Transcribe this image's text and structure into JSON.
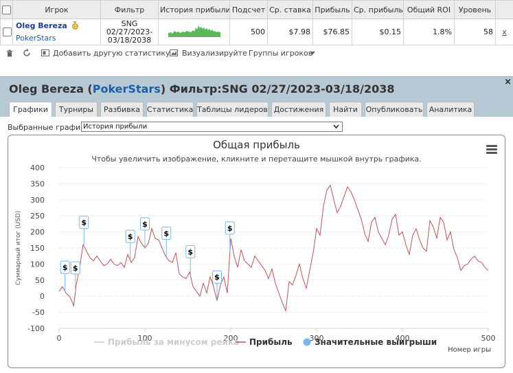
{
  "table": {
    "headers": [
      "Игрок",
      "Фильтр",
      "История прибыли",
      "Подсчет",
      "Ср. ставка",
      "Прибыль",
      "Ср. прибыль",
      "Общий ROI",
      "Уровень"
    ],
    "row": {
      "player": "Oleg Bereza",
      "site": "PokerStars",
      "filter_line1": "SNG",
      "filter_line2": "02/27/2023-",
      "filter_line3": "03/18/2038",
      "count": "500",
      "avg_stake": "$7.98",
      "profit": "$76.85",
      "avg_profit": "$0.15",
      "roi": "1.8%",
      "level": "58",
      "remove": "x"
    }
  },
  "toolbar": {
    "add_stat": "Добавить другую статистику",
    "visualize": "Визуализируйте",
    "groups": "Группы игроков"
  },
  "panel": {
    "player": "Oleg Bereza",
    "site": "PokerStars",
    "filter_label": "Фильтр:",
    "filter_value": "SNG 02/27/2023-03/18/2038",
    "close": "×"
  },
  "tabs": [
    "Графики",
    "Турниры",
    "Разбивка",
    "Статистика",
    "Таблицы лидеров",
    "Достижения",
    "Найти",
    "Опубликовать",
    "Аналитика"
  ],
  "graph_select": {
    "label": "Выбранные графики:",
    "value": "История прибыли"
  },
  "chart_data": {
    "type": "line",
    "title": "Общая прибыль",
    "subtitle": "Чтобы увеличить изображение, кликните и перетащите мышкой внутрь графика.",
    "xlabel": "Номер игры",
    "ylabel": "Суммарный итог (USD)",
    "xlim": [
      0,
      500
    ],
    "ylim": [
      -100,
      400
    ],
    "x_ticks": [
      0,
      100,
      200,
      300,
      400,
      500
    ],
    "y_ticks": [
      -100,
      -50,
      0,
      50,
      100,
      150,
      200,
      250,
      300,
      350,
      400
    ],
    "legend": [
      "Прибыль за минусом рейка",
      "Прибыль",
      "Значительные выигрыши"
    ],
    "legend_placement": "bottom",
    "series_color": "#b85454",
    "series": [
      {
        "name": "Прибыль",
        "x": [
          0,
          4,
          8,
          12,
          14,
          17,
          20,
          24,
          28,
          32,
          36,
          40,
          44,
          48,
          52,
          56,
          60,
          64,
          68,
          72,
          76,
          80,
          84,
          88,
          92,
          96,
          100,
          104,
          108,
          112,
          116,
          120,
          124,
          128,
          132,
          136,
          140,
          144,
          148,
          152,
          156,
          160,
          164,
          168,
          172,
          176,
          180,
          184,
          188,
          192,
          196,
          200,
          204,
          208,
          212,
          216,
          220,
          224,
          228,
          232,
          236,
          240,
          244,
          248,
          252,
          256,
          260,
          264,
          268,
          272,
          276,
          280,
          284,
          288,
          292,
          296,
          300,
          304,
          308,
          312,
          316,
          320,
          324,
          328,
          332,
          336,
          340,
          344,
          348,
          352,
          356,
          360,
          364,
          368,
          372,
          376,
          380,
          384,
          388,
          392,
          396,
          400,
          404,
          408,
          412,
          416,
          420,
          424,
          428,
          432,
          436,
          440,
          444,
          448,
          452,
          456,
          460,
          464,
          468,
          472,
          476,
          480,
          484,
          488,
          492,
          496,
          500
        ],
        "values": [
          15,
          30,
          10,
          0,
          -10,
          -30,
          35,
          90,
          160,
          140,
          120,
          110,
          125,
          110,
          95,
          100,
          115,
          100,
          95,
          105,
          90,
          130,
          105,
          120,
          185,
          165,
          150,
          165,
          210,
          180,
          175,
          150,
          125,
          110,
          105,
          135,
          70,
          60,
          55,
          75,
          30,
          15,
          0,
          40,
          10,
          60,
          30,
          -15,
          35,
          60,
          10,
          180,
          125,
          90,
          145,
          110,
          100,
          90,
          125,
          110,
          95,
          80,
          55,
          85,
          40,
          10,
          -20,
          -45,
          45,
          35,
          65,
          100,
          55,
          25,
          80,
          135,
          210,
          190,
          280,
          330,
          345,
          300,
          260,
          280,
          310,
          340,
          325,
          300,
          270,
          240,
          195,
          170,
          230,
          245,
          200,
          180,
          160,
          190,
          240,
          255,
          190,
          200,
          160,
          130,
          190,
          210,
          175,
          150,
          140,
          235,
          215,
          180,
          245,
          230,
          175,
          200,
          145,
          120,
          80,
          95,
          100,
          115,
          125,
          110,
          105,
          90,
          80
        ]
      },
      {
        "name": "Значительные выигрыши",
        "markers_x": [
          7,
          19,
          29,
          83,
          100,
          125,
          153,
          184,
          199
        ]
      }
    ]
  }
}
